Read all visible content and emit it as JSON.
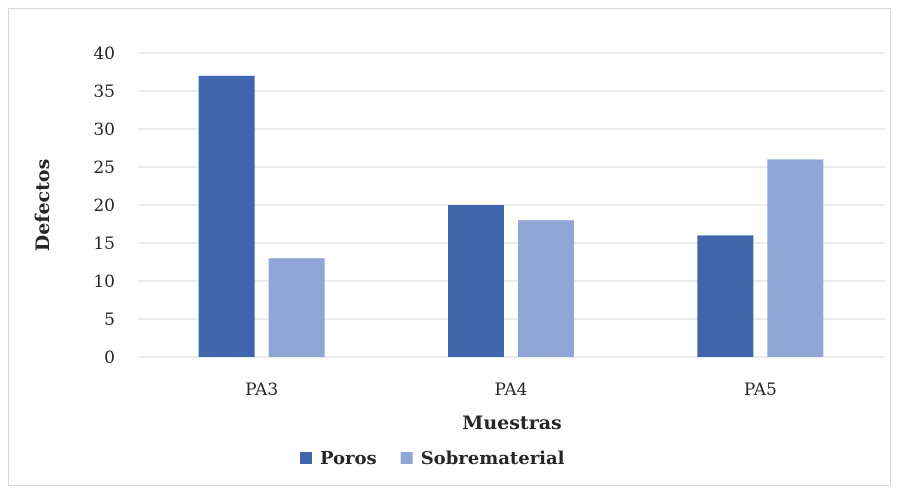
{
  "chart_data": {
    "type": "bar",
    "categories": [
      "PA3",
      "PA4",
      "PA5"
    ],
    "series": [
      {
        "name": "Poros",
        "values": [
          37,
          20,
          16
        ],
        "color": "#4066ae"
      },
      {
        "name": "Sobrematerial",
        "values": [
          13,
          18,
          26
        ],
        "color": "#8fa6d6"
      }
    ],
    "xlabel": "Muestras",
    "ylabel": "Defectos",
    "ylim": [
      0,
      40
    ],
    "yticks": [
      0,
      5,
      10,
      15,
      20,
      25,
      30,
      35,
      40
    ],
    "grid": true,
    "legend": "bottom"
  }
}
